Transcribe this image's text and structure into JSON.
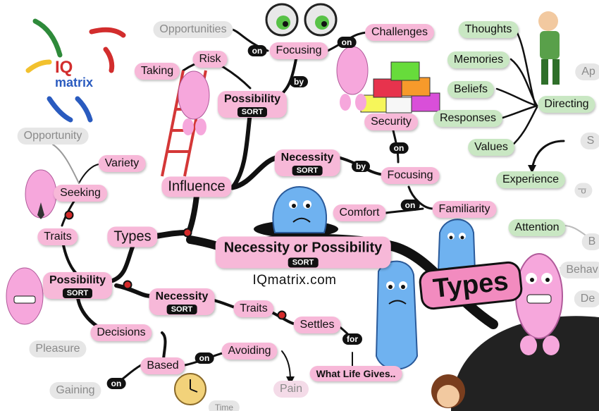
{
  "logo": {
    "line1": "IQ",
    "line2": "matrix"
  },
  "central": {
    "label": "Necessity or Possibility",
    "tag": "SORT"
  },
  "website": "IQmatrix.com",
  "big_label": "Types",
  "nodes": {
    "opportunities": "Opportunities",
    "challenges": "Challenges",
    "focusing_top": "Focusing",
    "risk": "Risk",
    "taking": "Taking",
    "possibility_top": "Possibility",
    "necessity_mid": "Necessity",
    "security": "Security",
    "focusing_right": "Focusing",
    "comfort": "Comfort",
    "familiarity": "Familiarity",
    "influence": "Influence",
    "types": "Types",
    "opportunity": "Opportunity",
    "variety": "Variety",
    "seeking": "Seeking",
    "traits_left": "Traits",
    "possibility_left": "Possibility",
    "necessity_low": "Necessity",
    "traits_low": "Traits",
    "settles": "Settles",
    "what_life_gives": "What Life Gives..",
    "decisions": "Decisions",
    "based": "Based",
    "avoiding": "Avoiding",
    "pain": "Pain",
    "pleasure": "Pleasure",
    "gaining": "Gaining",
    "thoughts": "Thoughts",
    "memories": "Memories",
    "beliefs": "Beliefs",
    "responses": "Responses",
    "values": "Values",
    "directing": "Directing",
    "experience": "Experience",
    "attention": "Attention",
    "ap": "Ap",
    "s_cut": "S",
    "o_cut": "o",
    "br": "B",
    "behav": "Behav",
    "de": "De",
    "time": "Time"
  },
  "sort_tag": "SORT",
  "connectors": {
    "on": "on",
    "by": "by",
    "for": "for"
  }
}
